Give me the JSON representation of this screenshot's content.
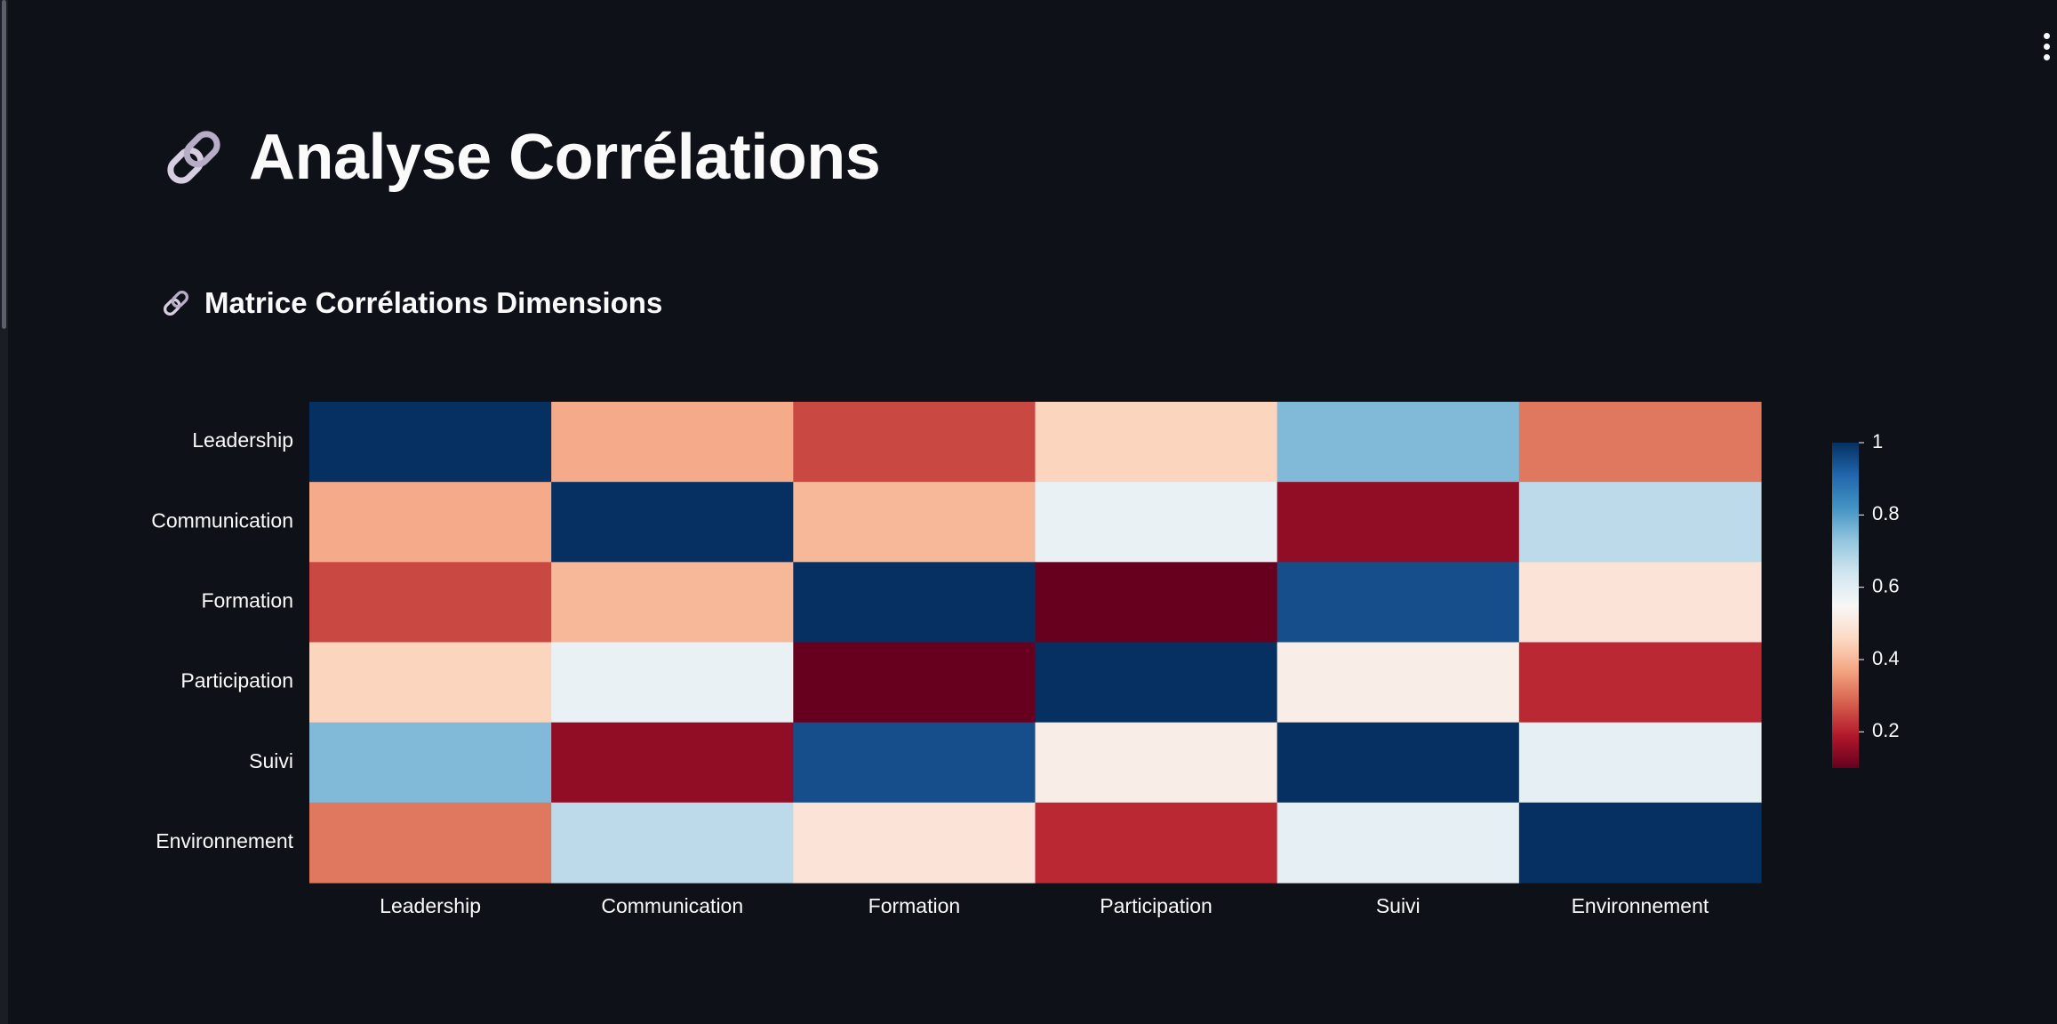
{
  "page": {
    "title": "Analyse Corrélations",
    "title_icon": "link-icon",
    "subheader": "Matrice Corrélations Dimensions",
    "subheader_icon": "link-icon"
  },
  "chart_data": {
    "type": "heatmap",
    "title": "",
    "colorscale": "RdBu",
    "zmin": 0.1,
    "zmax": 1,
    "x": [
      "Leadership",
      "Communication",
      "Formation",
      "Participation",
      "Suivi",
      "Environnement"
    ],
    "y": [
      "Leadership",
      "Communication",
      "Formation",
      "Participation",
      "Suivi",
      "Environnement"
    ],
    "z": [
      [
        1.0,
        0.38,
        0.25,
        0.45,
        0.75,
        0.31
      ],
      [
        0.38,
        1.0,
        0.4,
        0.58,
        0.15,
        0.67
      ],
      [
        0.25,
        0.4,
        1.0,
        0.1,
        0.95,
        0.49
      ],
      [
        0.45,
        0.58,
        0.1,
        1.0,
        0.52,
        0.21
      ],
      [
        0.75,
        0.15,
        0.95,
        0.52,
        1.0,
        0.59
      ],
      [
        0.31,
        0.67,
        0.49,
        0.21,
        0.59,
        1.0
      ]
    ],
    "colorbar": {
      "tickvals": [
        1,
        0.8,
        0.6,
        0.4,
        0.2
      ],
      "ticktext": [
        "1",
        "0.8",
        "0.6",
        "0.4",
        "0.2"
      ]
    }
  }
}
